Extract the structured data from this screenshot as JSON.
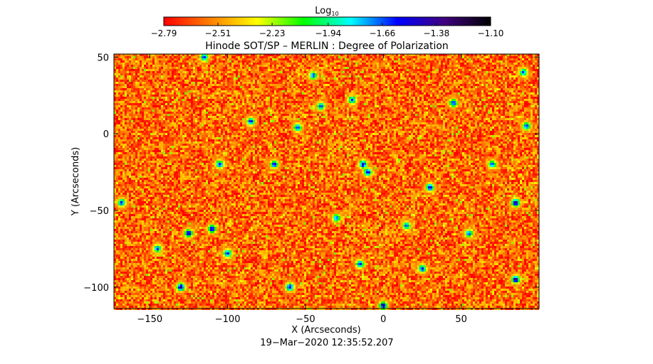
{
  "chart_data": {
    "type": "heatmap",
    "title": "Hinode SOT/SP – MERLIN : Degree of Polarization",
    "xlabel": "X (Arcseconds)",
    "ylabel": "Y (Arcseconds)",
    "xlim": [
      -173,
      100
    ],
    "ylim": [
      -114,
      52
    ],
    "xticks": [
      -150,
      -100,
      -50,
      0,
      50
    ],
    "yticks": [
      -100,
      -50,
      0,
      50
    ],
    "xtick_labels": [
      "−150",
      "−100",
      "−50",
      "0",
      "50"
    ],
    "ytick_labels": [
      "−100",
      "−50",
      "0",
      "50"
    ],
    "colorbar": {
      "label_base": "Log",
      "label_sub": "10",
      "tick_values": [
        -2.79,
        -2.51,
        -2.23,
        -1.94,
        -1.66,
        -1.38,
        -1.1
      ],
      "tick_labels": [
        "−2.79",
        "−2.51",
        "−2.23",
        "−1.94",
        "−1.66",
        "−1.38",
        "−1.10"
      ],
      "colors": [
        "#ff0000",
        "#ff8000",
        "#ffff00",
        "#00ff00",
        "#00ffff",
        "#0000ff",
        "#400080",
        "#000000"
      ]
    },
    "background_level": -2.6,
    "features": [
      {
        "x": -55,
        "y": 4,
        "level": -1.55
      },
      {
        "x": -40,
        "y": 18,
        "level": -1.6
      },
      {
        "x": -20,
        "y": 22,
        "level": -1.6
      },
      {
        "x": -85,
        "y": 8,
        "level": -1.5
      },
      {
        "x": -110,
        "y": -62,
        "level": -1.45
      },
      {
        "x": -125,
        "y": -65,
        "level": -1.4
      },
      {
        "x": -130,
        "y": -100,
        "level": -1.3
      },
      {
        "x": -70,
        "y": -20,
        "level": -1.5
      },
      {
        "x": -105,
        "y": -20,
        "level": -1.5
      },
      {
        "x": -13,
        "y": -20,
        "level": -1.35
      },
      {
        "x": -10,
        "y": -25,
        "level": -1.45
      },
      {
        "x": 30,
        "y": -35,
        "level": -1.4
      },
      {
        "x": 85,
        "y": -45,
        "level": -1.3
      },
      {
        "x": 85,
        "y": -95,
        "level": -1.3
      },
      {
        "x": -60,
        "y": -100,
        "level": -1.4
      },
      {
        "x": -15,
        "y": -85,
        "level": -1.5
      },
      {
        "x": 0,
        "y": -112,
        "level": -1.45
      },
      {
        "x": -100,
        "y": -78,
        "level": -1.5
      },
      {
        "x": 25,
        "y": -88,
        "level": -1.5
      },
      {
        "x": 45,
        "y": 20,
        "level": -1.55
      },
      {
        "x": 90,
        "y": 40,
        "level": -1.6
      },
      {
        "x": 92,
        "y": 5,
        "level": -1.55
      },
      {
        "x": -45,
        "y": 38,
        "level": -1.6
      },
      {
        "x": -115,
        "y": 50,
        "level": -1.55
      },
      {
        "x": -168,
        "y": -45,
        "level": -1.55
      },
      {
        "x": -145,
        "y": -75,
        "level": -1.6
      },
      {
        "x": 15,
        "y": -60,
        "level": -1.6
      },
      {
        "x": 55,
        "y": -65,
        "level": -1.6
      },
      {
        "x": -30,
        "y": -55,
        "level": -1.6
      },
      {
        "x": 70,
        "y": -20,
        "level": -1.6
      }
    ]
  },
  "footer": {
    "timestamp": "19−Mar−2020 12:35:52.207"
  }
}
